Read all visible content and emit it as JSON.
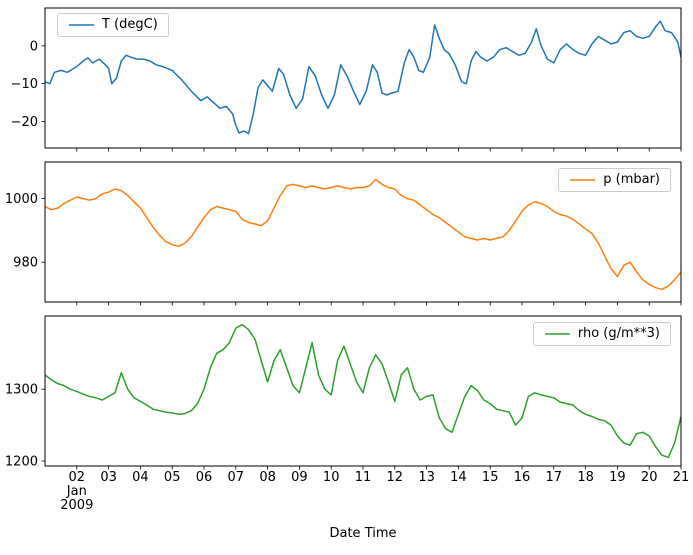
{
  "figure": {
    "xlabel": "Date Time",
    "x_offset_line1": "Jan",
    "x_offset_line2": "2009",
    "background": "#ffffff"
  },
  "xaxis": {
    "xlim": [
      1,
      21
    ],
    "ticks": [
      2,
      3,
      4,
      5,
      6,
      7,
      8,
      9,
      10,
      11,
      12,
      13,
      14,
      15,
      16,
      17,
      18,
      19,
      20,
      21
    ],
    "tick_labels": [
      "02",
      "03",
      "04",
      "05",
      "06",
      "07",
      "08",
      "09",
      "10",
      "11",
      "12",
      "13",
      "14",
      "15",
      "16",
      "17",
      "18",
      "19",
      "20",
      "21"
    ]
  },
  "chart_data": [
    {
      "type": "line",
      "name": "temperature",
      "legend": "T (degC)",
      "color": "#1f77b4",
      "legend_position": "top-left",
      "ylim": [
        -27,
        10
      ],
      "yticks": [
        0,
        -10,
        -20
      ],
      "x": [
        1.0,
        1.15,
        1.3,
        1.5,
        1.7,
        1.9,
        2.0,
        2.2,
        2.35,
        2.5,
        2.7,
        2.9,
        3.0,
        3.1,
        3.25,
        3.4,
        3.55,
        3.7,
        3.9,
        4.1,
        4.3,
        4.5,
        4.7,
        5.0,
        5.3,
        5.6,
        5.9,
        6.1,
        6.3,
        6.5,
        6.7,
        6.9,
        7.0,
        7.1,
        7.25,
        7.4,
        7.55,
        7.7,
        7.85,
        8.0,
        8.15,
        8.35,
        8.5,
        8.7,
        8.9,
        9.1,
        9.3,
        9.5,
        9.7,
        9.9,
        10.1,
        10.3,
        10.5,
        10.7,
        10.9,
        11.1,
        11.3,
        11.45,
        11.6,
        11.75,
        11.9,
        12.1,
        12.3,
        12.45,
        12.6,
        12.75,
        12.9,
        13.1,
        13.25,
        13.4,
        13.55,
        13.7,
        13.9,
        14.1,
        14.25,
        14.4,
        14.55,
        14.7,
        14.9,
        15.1,
        15.3,
        15.5,
        15.7,
        15.9,
        16.1,
        16.3,
        16.45,
        16.6,
        16.8,
        17.0,
        17.2,
        17.4,
        17.6,
        17.8,
        18.0,
        18.2,
        18.4,
        18.6,
        18.8,
        19.0,
        19.2,
        19.4,
        19.6,
        19.8,
        20.0,
        20.2,
        20.35,
        20.5,
        20.7,
        20.9,
        21.0
      ],
      "y": [
        -9.5,
        -10,
        -7,
        -6.5,
        -7,
        -6,
        -5.5,
        -4,
        -3.2,
        -4.5,
        -3.5,
        -5,
        -6,
        -10,
        -8.5,
        -4,
        -2.5,
        -3,
        -3.5,
        -3.5,
        -4,
        -5,
        -5.5,
        -6.5,
        -9,
        -12,
        -14.5,
        -13.5,
        -15,
        -16.5,
        -16,
        -18,
        -21,
        -23,
        -22.5,
        -23.2,
        -18,
        -11,
        -9,
        -10.5,
        -12,
        -6,
        -7.5,
        -13,
        -16.5,
        -14,
        -5.5,
        -8,
        -13,
        -16.5,
        -13,
        -5,
        -8,
        -12,
        -15.5,
        -12,
        -5,
        -7,
        -12.5,
        -13,
        -12.5,
        -12,
        -4.5,
        -1,
        -3,
        -6.5,
        -7,
        -3,
        5.5,
        2,
        -1,
        -2,
        -5,
        -9.5,
        -10,
        -4,
        -1.5,
        -3,
        -4,
        -3,
        -1,
        -0.5,
        -1.5,
        -2.5,
        -2,
        1,
        4.5,
        0,
        -3.5,
        -4.5,
        -1,
        0.5,
        -1,
        -2,
        -2.5,
        0.5,
        2.5,
        1.5,
        0.5,
        1,
        3.5,
        4,
        2.5,
        2,
        2.5,
        5,
        6.5,
        4,
        3.5,
        1,
        -3
      ]
    },
    {
      "type": "line",
      "name": "pressure",
      "legend": "p (mbar)",
      "color": "#ff7f0e",
      "legend_position": "top-right",
      "ylim": [
        967.5,
        1011.5
      ],
      "yticks": [
        1000,
        980
      ],
      "x0": 1.0,
      "dx": 0.2,
      "y": [
        997.5,
        996.5,
        997,
        998.5,
        999.5,
        1000.5,
        1000,
        999.5,
        1000,
        1001.5,
        1002,
        1003,
        1002.5,
        1001,
        999,
        997,
        994,
        991,
        988.5,
        986.5,
        985.5,
        985,
        986,
        988,
        991,
        994,
        996.5,
        997.5,
        997,
        996.5,
        996,
        993.5,
        992.5,
        992,
        991.5,
        993,
        997,
        1001,
        1004,
        1004.5,
        1004,
        1003.5,
        1004,
        1003.5,
        1003,
        1003.5,
        1004,
        1003.5,
        1003,
        1003.5,
        1003.5,
        1004,
        1006,
        1004.5,
        1003.5,
        1003,
        1001,
        1000,
        999.5,
        998,
        996.5,
        995,
        994,
        992.5,
        991,
        989.5,
        988,
        987.5,
        987,
        987.5,
        987,
        987.5,
        988,
        990,
        993,
        996,
        998,
        999,
        998.5,
        997.5,
        996,
        995,
        994.5,
        993.5,
        992,
        990.5,
        989,
        986,
        982,
        978,
        975.5,
        979,
        980,
        977,
        974.5,
        973,
        972,
        971.5,
        972.5,
        974.5,
        977
      ]
    },
    {
      "type": "line",
      "name": "density",
      "legend": "rho (g/m**3)",
      "color": "#2ca02c",
      "legend_position": "top-right",
      "ylim": [
        1193,
        1402
      ],
      "yticks": [
        1300,
        1200
      ],
      "x0": 1.0,
      "dx": 0.2,
      "y": [
        1320,
        1313,
        1308,
        1305,
        1300,
        1297,
        1293,
        1290,
        1288,
        1285,
        1290,
        1295,
        1323,
        1300,
        1288,
        1283,
        1278,
        1272,
        1270,
        1268,
        1267,
        1265,
        1266,
        1270,
        1280,
        1300,
        1330,
        1350,
        1355,
        1365,
        1385,
        1390,
        1383,
        1370,
        1340,
        1310,
        1340,
        1355,
        1330,
        1305,
        1295,
        1330,
        1365,
        1320,
        1300,
        1292,
        1340,
        1360,
        1335,
        1310,
        1295,
        1330,
        1348,
        1335,
        1310,
        1283,
        1320,
        1330,
        1300,
        1285,
        1290,
        1292,
        1260,
        1245,
        1240,
        1265,
        1290,
        1305,
        1298,
        1285,
        1280,
        1272,
        1270,
        1268,
        1250,
        1260,
        1290,
        1295,
        1292,
        1290,
        1288,
        1282,
        1280,
        1278,
        1270,
        1265,
        1262,
        1258,
        1256,
        1250,
        1235,
        1225,
        1222,
        1238,
        1240,
        1235,
        1220,
        1208,
        1205,
        1225,
        1262
      ]
    }
  ]
}
